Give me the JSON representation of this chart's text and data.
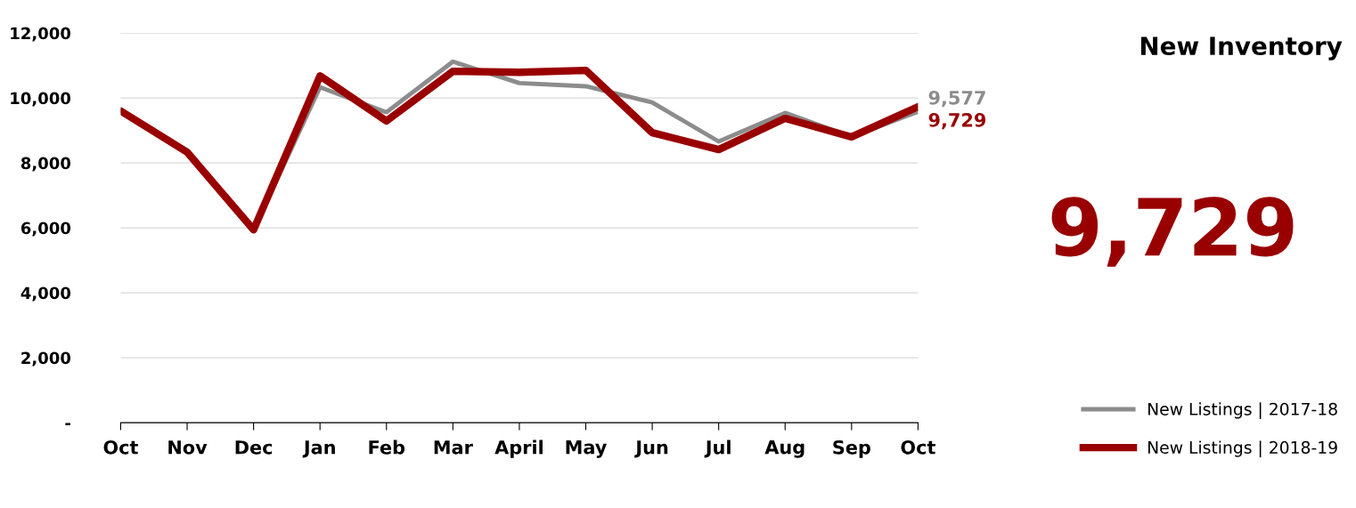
{
  "chart_data": {
    "type": "line",
    "title": "New Inventory",
    "categories": [
      "Oct",
      "Nov",
      "Dec",
      "Jan",
      "Feb",
      "Mar",
      "April",
      "May",
      "Jun",
      "Jul",
      "Aug",
      "Sep",
      "Oct"
    ],
    "series": [
      {
        "name": "New Listings | 2017-18",
        "color": "#8c8c8c",
        "values": [
          9600,
          8330,
          5940,
          10330,
          9560,
          11120,
          10460,
          10360,
          9860,
          8660,
          9540,
          8800,
          9577
        ],
        "value_labels": [
          null,
          null,
          null,
          null,
          null,
          null,
          null,
          null,
          null,
          null,
          null,
          null,
          "9,577"
        ]
      },
      {
        "name": "New Listings | 2018-19",
        "color": "#990000",
        "values": [
          9600,
          8330,
          5940,
          10680,
          9290,
          10820,
          10790,
          10850,
          8930,
          8410,
          9370,
          8800,
          9729
        ],
        "value_labels": [
          null,
          null,
          null,
          null,
          null,
          null,
          null,
          null,
          null,
          null,
          null,
          null,
          "9,729"
        ]
      }
    ],
    "ylim": [
      0,
      12000
    ],
    "yticks": [
      {
        "value": 0,
        "label": "-"
      },
      {
        "value": 2000,
        "label": "2,000"
      },
      {
        "value": 4000,
        "label": "4,000"
      },
      {
        "value": 6000,
        "label": "6,000"
      },
      {
        "value": 8000,
        "label": "8,000"
      },
      {
        "value": 10000,
        "label": "10,000"
      },
      {
        "value": 12000,
        "label": "12,000"
      }
    ],
    "grid": "y",
    "legend": "right",
    "marker": "none",
    "line_style": "solid",
    "annotations": [
      "9,729"
    ]
  }
}
